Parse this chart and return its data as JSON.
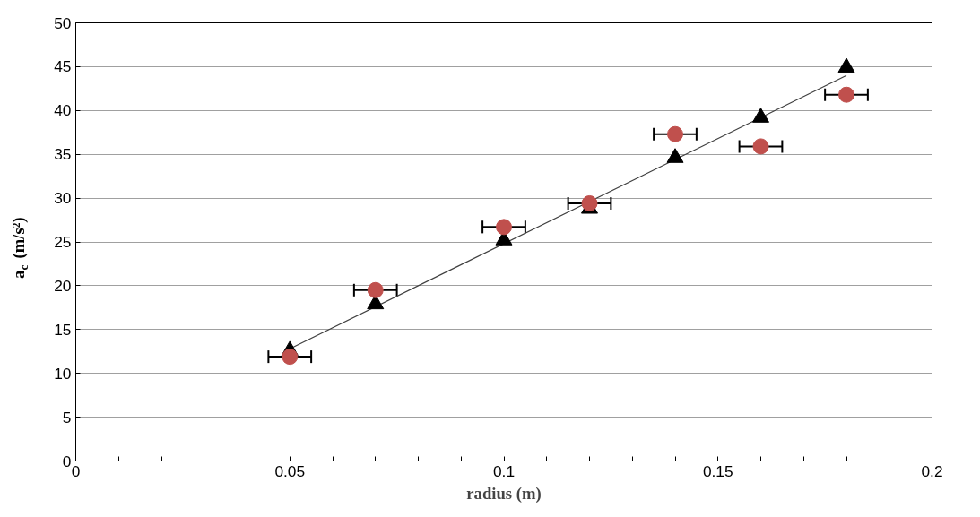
{
  "chart_data": {
    "type": "scatter",
    "xlabel": "radius (m)",
    "ylabel": "a$_{c}$ (m/s²)",
    "xlim": [
      0,
      0.2
    ],
    "xticks": [
      0,
      0.05,
      0.1,
      0.15,
      0.2
    ],
    "ylim": [
      0,
      50
    ],
    "yticks": [
      0,
      5,
      10,
      15,
      20,
      25,
      30,
      35,
      40,
      45,
      50
    ],
    "grid": "y",
    "series": [
      {
        "type": "line",
        "color": "#404040",
        "x": [
          0.05,
          0.18
        ],
        "values": [
          12.8,
          44.0
        ],
        "marker": "none"
      },
      {
        "color": "#000000",
        "marker": "triangle",
        "x": [
          0.05,
          0.07,
          0.1,
          0.12,
          0.14,
          0.16,
          0.18
        ],
        "values": [
          12.6,
          17.9,
          25.2,
          28.8,
          34.6,
          39.2,
          44.9
        ]
      },
      {
        "color": "#c0504d",
        "marker": "circle",
        "x": [
          0.05,
          0.07,
          0.1,
          0.12,
          0.14,
          0.16,
          0.18
        ],
        "values": [
          11.9,
          19.5,
          26.7,
          29.4,
          37.3,
          35.9,
          41.8
        ],
        "xerrors": [
          0.005,
          0.005,
          0.005,
          0.005,
          0.005,
          0.005,
          0.005
        ]
      }
    ]
  }
}
